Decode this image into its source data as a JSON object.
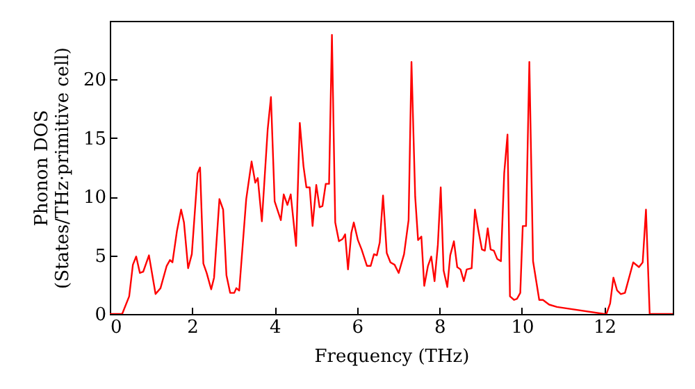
{
  "chart_data": {
    "type": "line",
    "xlabel": "Frequency (THz)",
    "ylabel": "Phonon DOS\n(States/THz·primitive cell)",
    "xlim": [
      0,
      13.66
    ],
    "ylim": [
      0,
      25
    ],
    "xticks": [
      0,
      2,
      4,
      6,
      8,
      10,
      12
    ],
    "yticks": [
      0,
      5,
      10,
      15,
      20
    ],
    "grid": false,
    "marker": "none",
    "line_style": "solid",
    "x": [
      0,
      0.3,
      0.47,
      0.56,
      0.64,
      0.73,
      0.81,
      0.95,
      1.11,
      1.23,
      1.38,
      1.46,
      1.52,
      1.63,
      1.73,
      1.8,
      1.9,
      1.99,
      2.13,
      2.19,
      2.27,
      2.35,
      2.46,
      2.53,
      2.66,
      2.75,
      2.83,
      2.92,
      3.02,
      3.07,
      3.14,
      3.31,
      3.44,
      3.53,
      3.59,
      3.69,
      3.83,
      3.91,
      4.0,
      4.15,
      4.22,
      4.31,
      4.39,
      4.52,
      4.61,
      4.7,
      4.77,
      4.85,
      4.92,
      5.01,
      5.09,
      5.16,
      5.24,
      5.32,
      5.39,
      5.47,
      5.56,
      5.65,
      5.71,
      5.78,
      5.86,
      5.92,
      6.02,
      6.11,
      6.24,
      6.33,
      6.41,
      6.48,
      6.55,
      6.63,
      6.72,
      6.81,
      6.91,
      7.01,
      7.14,
      7.25,
      7.32,
      7.41,
      7.48,
      7.56,
      7.63,
      7.72,
      7.8,
      7.88,
      7.96,
      8.03,
      8.1,
      8.19,
      8.26,
      8.35,
      8.43,
      8.51,
      8.59,
      8.66,
      8.78,
      8.86,
      8.94,
      9.03,
      9.1,
      9.17,
      9.24,
      9.32,
      9.4,
      9.49,
      9.57,
      9.65,
      9.71,
      9.81,
      9.88,
      9.96,
      10.02,
      10.1,
      10.18,
      10.27,
      10.42,
      10.51,
      10.66,
      10.85,
      12.0,
      12.05,
      12.14,
      12.22,
      12.31,
      12.4,
      12.5,
      12.7,
      12.84,
      12.93,
      13.01,
      13.1,
      13.66
    ],
    "series": [
      {
        "color": "#ff0000",
        "values": [
          0,
          0,
          1.5,
          4.2,
          4.9,
          3.5,
          3.6,
          5.0,
          1.7,
          2.2,
          4.1,
          4.6,
          4.4,
          7.1,
          8.9,
          7.8,
          3.9,
          5.1,
          12.0,
          12.5,
          4.3,
          3.5,
          2.1,
          3.1,
          9.8,
          8.9,
          3.3,
          1.8,
          1.8,
          2.2,
          2.0,
          9.8,
          13.0,
          11.2,
          11.6,
          7.9,
          15.7,
          18.5,
          9.6,
          8.0,
          10.2,
          9.3,
          10.2,
          5.8,
          16.3,
          12.6,
          10.8,
          10.8,
          7.5,
          11.0,
          9.1,
          9.2,
          11.1,
          11.1,
          23.8,
          7.8,
          6.2,
          6.4,
          6.8,
          3.8,
          6.9,
          7.8,
          6.3,
          5.5,
          4.1,
          4.1,
          5.1,
          5.0,
          6.1,
          10.1,
          5.2,
          4.4,
          4.2,
          3.5,
          5.1,
          8.0,
          21.5,
          10.0,
          6.3,
          6.6,
          2.4,
          4.1,
          4.9,
          2.8,
          5.9,
          10.8,
          3.7,
          2.3,
          5.0,
          6.2,
          4.0,
          3.8,
          2.8,
          3.8,
          3.9,
          8.9,
          7.2,
          5.5,
          5.4,
          7.3,
          5.5,
          5.4,
          4.7,
          4.5,
          12.0,
          15.3,
          1.5,
          1.2,
          1.3,
          1.8,
          7.5,
          7.5,
          21.5,
          4.5,
          1.2,
          1.2,
          0.8,
          0.6,
          0,
          0,
          0.9,
          3.1,
          2.0,
          1.7,
          1.8,
          4.4,
          4.0,
          4.4,
          8.9,
          0,
          0
        ]
      }
    ]
  }
}
